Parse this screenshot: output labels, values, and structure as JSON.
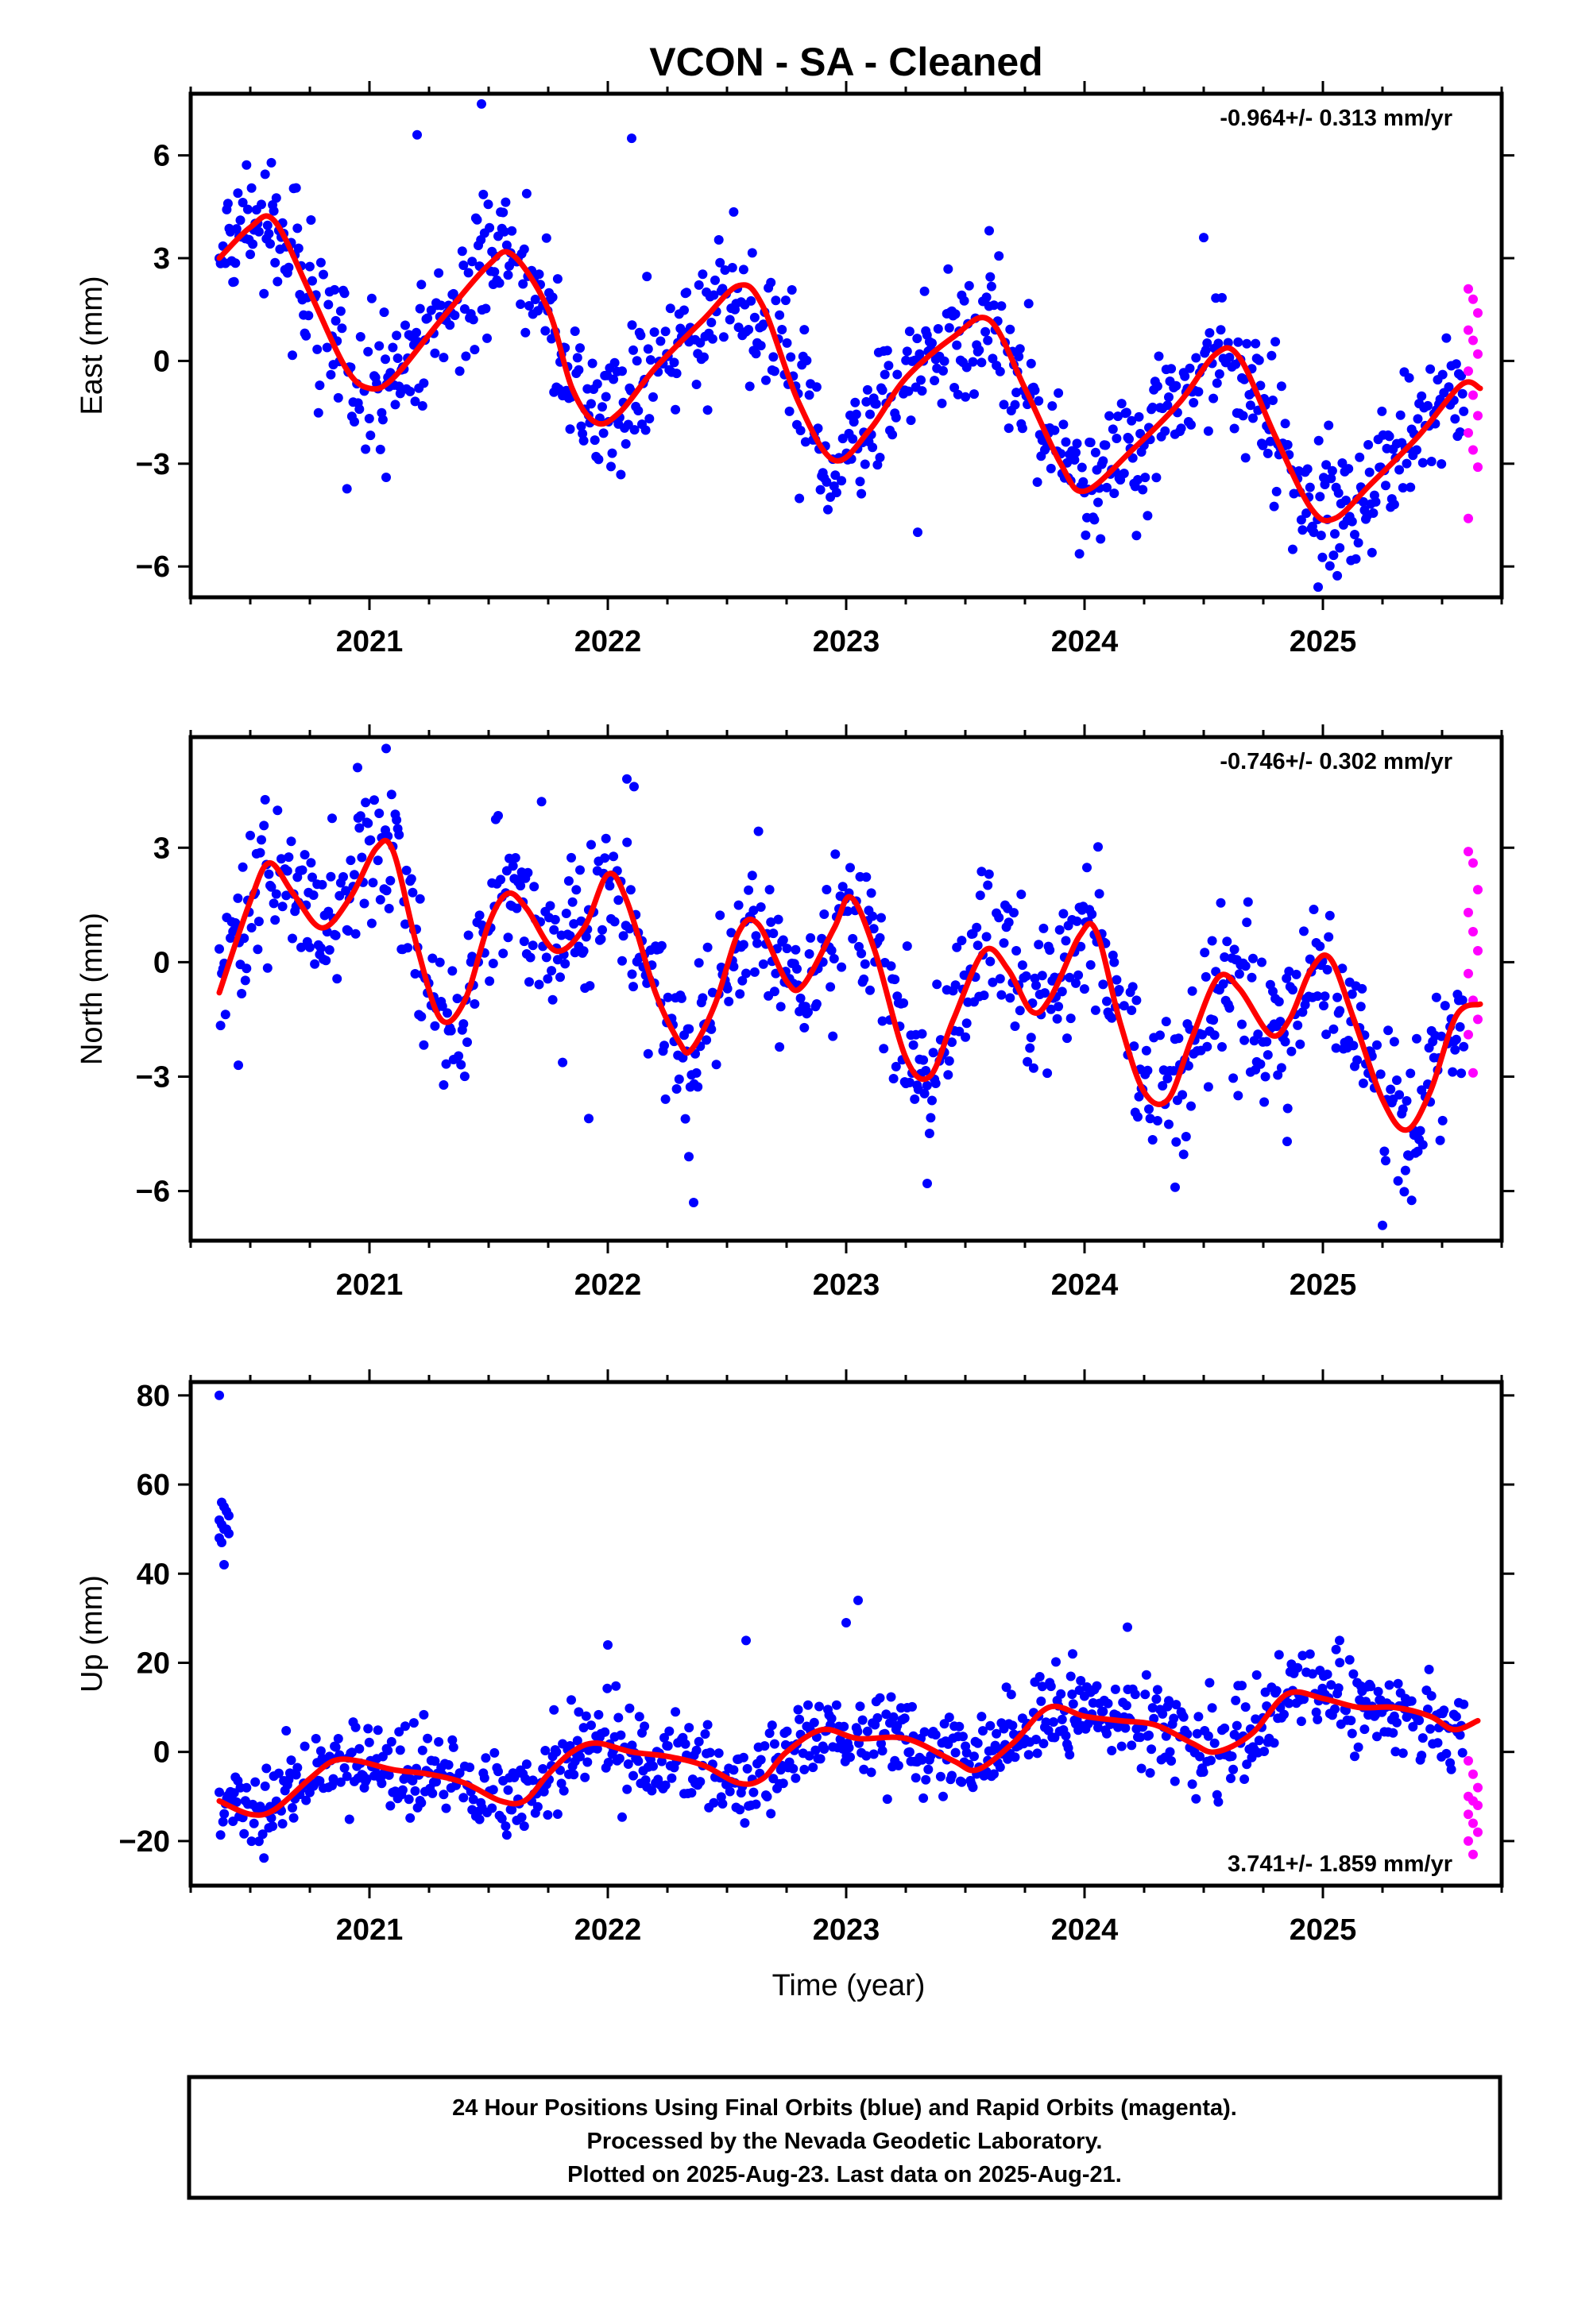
{
  "title": "VCON  - SA - Cleaned",
  "colors": {
    "final_orbits": "#0000ff",
    "rapid_orbits": "#ff00ff",
    "fit": "#ff0000",
    "axes": "#000000"
  },
  "footer": {
    "line1": "24 Hour Positions Using Final Orbits (blue) and Rapid Orbits (magenta).",
    "line2": "Processed by the Nevada Geodetic Laboratory.",
    "line3": "Plotted on 2025-Aug-23. Last data on 2025-Aug-21."
  },
  "chart_data": [
    {
      "type": "scatter",
      "panel": "east",
      "ylabel": "East (mm)",
      "xlabel": "",
      "rate": "-0.964+/- 0.313 mm/yr",
      "rate_position": "top-right",
      "xlim": [
        2020.25,
        2025.75
      ],
      "ylim": [
        -6.9,
        7.8
      ],
      "xticks": [
        "2021",
        "2022",
        "2023",
        "2024",
        "2025"
      ],
      "yticks": [
        "6",
        "3",
        "0",
        "−3",
        "−6"
      ],
      "ytick_values": [
        6,
        3,
        0,
        -3,
        -6
      ],
      "seasonal": {
        "trend": [
          [
            2020.37,
            3.0
          ],
          [
            2020.5,
            3.9
          ],
          [
            2020.6,
            4.1
          ],
          [
            2020.75,
            2.0
          ],
          [
            2020.9,
            -0.2
          ],
          [
            2021.0,
            -0.8
          ],
          [
            2021.1,
            -0.5
          ],
          [
            2021.3,
            1.2
          ],
          [
            2021.5,
            2.8
          ],
          [
            2021.6,
            3.1
          ],
          [
            2021.75,
            1.5
          ],
          [
            2021.85,
            -0.8
          ],
          [
            2021.95,
            -1.8
          ],
          [
            2022.05,
            -1.5
          ],
          [
            2022.2,
            -0.2
          ],
          [
            2022.4,
            1.2
          ],
          [
            2022.55,
            2.2
          ],
          [
            2022.65,
            1.6
          ],
          [
            2022.8,
            -1.2
          ],
          [
            2022.95,
            -2.9
          ],
          [
            2023.1,
            -2.0
          ],
          [
            2023.25,
            -0.5
          ],
          [
            2023.45,
            0.7
          ],
          [
            2023.6,
            1.2
          ],
          [
            2023.75,
            -0.8
          ],
          [
            2023.9,
            -3.0
          ],
          [
            2024.0,
            -3.8
          ],
          [
            2024.2,
            -2.6
          ],
          [
            2024.4,
            -1.2
          ],
          [
            2024.55,
            0.2
          ],
          [
            2024.65,
            0.1
          ],
          [
            2024.8,
            -2.2
          ],
          [
            2024.95,
            -4.3
          ],
          [
            2025.05,
            -4.6
          ],
          [
            2025.2,
            -3.6
          ],
          [
            2025.4,
            -2.2
          ],
          [
            2025.58,
            -0.7
          ],
          [
            2025.66,
            -0.8
          ]
        ],
        "scatter_sd": 1.0
      },
      "outliers": [
        [
          2021.2,
          6.6
        ],
        [
          2021.47,
          7.5
        ],
        [
          2022.1,
          6.5
        ],
        [
          2023.6,
          3.8
        ],
        [
          2024.5,
          3.6
        ],
        [
          2023.3,
          -5.0
        ],
        [
          2021.07,
          -3.4
        ],
        [
          2024.98,
          -6.6
        ]
      ],
      "rapid": {
        "x_range": [
          2025.61,
          2025.65
        ],
        "values": [
          2.1,
          1.8,
          1.4,
          0.9,
          0.6,
          0.2,
          -0.3,
          -1.0,
          -1.6,
          -2.1,
          -2.6,
          -3.1,
          -4.6
        ]
      }
    },
    {
      "type": "scatter",
      "panel": "north",
      "ylabel": "North (mm)",
      "xlabel": "",
      "rate": "-0.746+/- 0.302 mm/yr",
      "rate_position": "top-right",
      "xlim": [
        2020.25,
        2025.75
      ],
      "ylim": [
        -7.3,
        5.9
      ],
      "xticks": [
        "2021",
        "2022",
        "2023",
        "2024",
        "2025"
      ],
      "yticks": [
        "3",
        "0",
        "−3",
        "−6"
      ],
      "ytick_values": [
        3,
        0,
        -3,
        -6
      ],
      "seasonal": {
        "trend": [
          [
            2020.37,
            -0.8
          ],
          [
            2020.5,
            1.6
          ],
          [
            2020.58,
            2.6
          ],
          [
            2020.68,
            1.8
          ],
          [
            2020.8,
            0.9
          ],
          [
            2020.92,
            1.7
          ],
          [
            2021.03,
            3.0
          ],
          [
            2021.1,
            2.9
          ],
          [
            2021.2,
            0.4
          ],
          [
            2021.3,
            -1.5
          ],
          [
            2021.4,
            -1.0
          ],
          [
            2021.5,
            1.0
          ],
          [
            2021.58,
            1.8
          ],
          [
            2021.66,
            1.4
          ],
          [
            2021.78,
            0.3
          ],
          [
            2021.9,
            0.9
          ],
          [
            2022.0,
            2.3
          ],
          [
            2022.08,
            1.6
          ],
          [
            2022.2,
            -0.8
          ],
          [
            2022.3,
            -2.1
          ],
          [
            2022.35,
            -2.3
          ],
          [
            2022.45,
            -1.1
          ],
          [
            2022.55,
            0.8
          ],
          [
            2022.63,
            1.0
          ],
          [
            2022.75,
            -0.5
          ],
          [
            2022.82,
            -0.6
          ],
          [
            2022.95,
            0.9
          ],
          [
            2023.02,
            1.7
          ],
          [
            2023.12,
            0.3
          ],
          [
            2023.25,
            -2.5
          ],
          [
            2023.35,
            -3.0
          ],
          [
            2023.45,
            -1.5
          ],
          [
            2023.58,
            0.3
          ],
          [
            2023.68,
            -0.2
          ],
          [
            2023.78,
            -1.3
          ],
          [
            2023.86,
            -0.9
          ],
          [
            2023.98,
            0.7
          ],
          [
            2024.05,
            0.8
          ],
          [
            2024.15,
            -1.6
          ],
          [
            2024.25,
            -3.4
          ],
          [
            2024.35,
            -3.6
          ],
          [
            2024.45,
            -2.0
          ],
          [
            2024.56,
            -0.4
          ],
          [
            2024.65,
            -0.7
          ],
          [
            2024.78,
            -1.9
          ],
          [
            2024.86,
            -1.5
          ],
          [
            2024.95,
            -0.2
          ],
          [
            2025.03,
            0.1
          ],
          [
            2025.13,
            -1.5
          ],
          [
            2025.25,
            -3.6
          ],
          [
            2025.35,
            -4.4
          ],
          [
            2025.45,
            -3.4
          ],
          [
            2025.56,
            -1.4
          ],
          [
            2025.66,
            -1.1
          ]
        ],
        "scatter_sd": 1.0
      },
      "outliers": [
        [
          2020.45,
          -2.7
        ],
        [
          2020.95,
          5.1
        ],
        [
          2021.07,
          5.6
        ],
        [
          2021.92,
          -4.1
        ],
        [
          2022.08,
          4.8
        ],
        [
          2022.11,
          4.6
        ],
        [
          2022.36,
          -6.3
        ],
        [
          2022.34,
          -5.1
        ],
        [
          2023.34,
          -5.8
        ],
        [
          2024.38,
          -5.9
        ],
        [
          2025.25,
          -6.9
        ],
        [
          2024.85,
          -4.7
        ]
      ],
      "rapid": {
        "x_range": [
          2025.61,
          2025.65
        ],
        "values": [
          2.9,
          2.6,
          1.9,
          1.3,
          0.8,
          0.3,
          -0.3,
          -1.0,
          -1.5,
          -1.9,
          -2.9
        ]
      }
    },
    {
      "type": "scatter",
      "panel": "up",
      "ylabel": "Up (mm)",
      "xlabel": "Time (year)",
      "rate": "3.741+/- 1.859 mm/yr",
      "rate_position": "bottom-right",
      "xlim": [
        2020.25,
        2025.75
      ],
      "ylim": [
        -30,
        83
      ],
      "xticks": [
        "2021",
        "2022",
        "2023",
        "2024",
        "2025"
      ],
      "yticks": [
        "80",
        "60",
        "40",
        "20",
        "0",
        "−20"
      ],
      "ytick_values": [
        80,
        60,
        40,
        20,
        0,
        -20
      ],
      "seasonal": {
        "trend": [
          [
            2020.37,
            -11
          ],
          [
            2020.5,
            -14
          ],
          [
            2020.6,
            -13
          ],
          [
            2020.75,
            -6
          ],
          [
            2020.85,
            -2
          ],
          [
            2020.95,
            -2
          ],
          [
            2021.1,
            -4
          ],
          [
            2021.25,
            -5
          ],
          [
            2021.4,
            -7
          ],
          [
            2021.55,
            -11
          ],
          [
            2021.65,
            -11
          ],
          [
            2021.75,
            -5
          ],
          [
            2021.85,
            0
          ],
          [
            2021.95,
            2
          ],
          [
            2022.1,
            0
          ],
          [
            2022.25,
            -1
          ],
          [
            2022.4,
            -3
          ],
          [
            2022.55,
            -7
          ],
          [
            2022.65,
            -6
          ],
          [
            2022.75,
            0
          ],
          [
            2022.9,
            5
          ],
          [
            2023.05,
            3
          ],
          [
            2023.25,
            3
          ],
          [
            2023.45,
            -2
          ],
          [
            2023.55,
            -4
          ],
          [
            2023.7,
            2
          ],
          [
            2023.85,
            10
          ],
          [
            2024.0,
            8
          ],
          [
            2024.15,
            7
          ],
          [
            2024.3,
            6
          ],
          [
            2024.45,
            2
          ],
          [
            2024.55,
            0
          ],
          [
            2024.7,
            4
          ],
          [
            2024.85,
            13
          ],
          [
            2025.0,
            12
          ],
          [
            2025.15,
            10
          ],
          [
            2025.3,
            10
          ],
          [
            2025.45,
            8
          ],
          [
            2025.55,
            5
          ],
          [
            2025.65,
            7
          ]
        ],
        "scatter_sd": 5.0
      },
      "early_cluster": {
        "x_range": [
          2020.37,
          2020.41
        ],
        "values": [
          80,
          56,
          55,
          54,
          53,
          52,
          51,
          50,
          50,
          49,
          48,
          47,
          42
        ]
      },
      "outliers": [
        [
          2023.0,
          29
        ],
        [
          2023.05,
          34
        ],
        [
          2024.18,
          28
        ],
        [
          2025.07,
          25
        ],
        [
          2022.0,
          24
        ],
        [
          2022.58,
          25
        ],
        [
          2023.95,
          22
        ]
      ],
      "rapid": {
        "x_range": [
          2025.61,
          2025.65
        ],
        "values": [
          -2,
          -5,
          -8,
          -10,
          -11,
          -12,
          -14,
          -16,
          -18,
          -20,
          -23
        ]
      }
    }
  ]
}
